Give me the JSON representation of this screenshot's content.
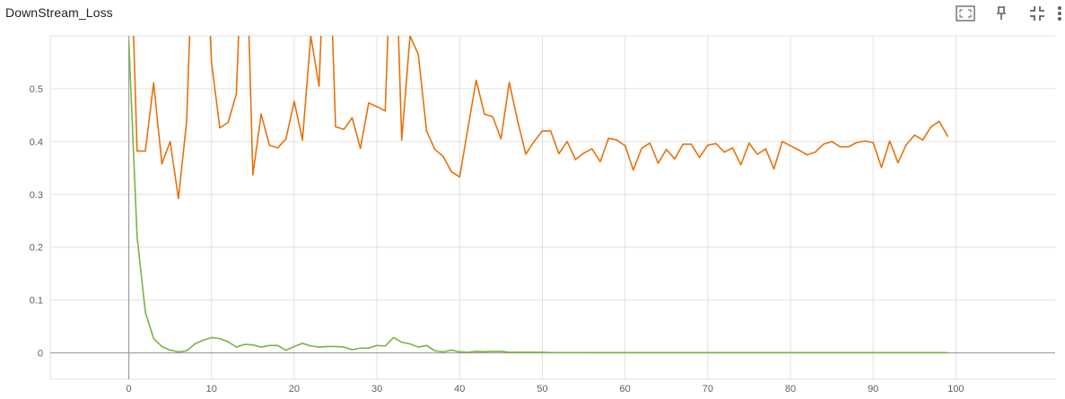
{
  "title": "DownStream_Loss",
  "toolbar": {
    "icons": [
      "fit-domain-icon",
      "pin-icon",
      "collapse-icon",
      "more-vert-icon"
    ]
  },
  "colors": {
    "series_orange": "#e8710a",
    "series_green": "#7cb342",
    "grid": "#e0e0e0",
    "axis": "#9e9e9e",
    "tick_text": "#616161"
  },
  "chart_data": {
    "type": "line",
    "title": "DownStream_Loss",
    "xlabel": "",
    "ylabel": "",
    "xlim": [
      -9.5,
      112
    ],
    "ylim": [
      -0.05,
      0.6
    ],
    "x_ticks": [
      0,
      10,
      20,
      30,
      40,
      50,
      60,
      70,
      80,
      90,
      100
    ],
    "y_ticks": [
      0,
      0.1,
      0.2,
      0.3,
      0.4,
      0.5
    ],
    "x_tick_labels": [
      "0",
      "10",
      "20",
      "30",
      "40",
      "50",
      "60",
      "70",
      "80",
      "90",
      "100"
    ],
    "y_tick_labels": [
      "0",
      "0.1",
      "0.2",
      "0.3",
      "0.4",
      "0.5"
    ],
    "grid": true,
    "legend": "none",
    "series": [
      {
        "color": "#e8710a",
        "x": [
          0,
          1,
          2,
          3,
          4,
          5,
          6,
          7,
          8,
          9,
          10,
          11,
          12,
          13,
          14,
          15,
          16,
          17,
          18,
          19,
          20,
          21,
          22,
          23,
          24,
          25,
          26,
          27,
          28,
          29,
          30,
          31,
          32,
          33,
          34,
          35,
          36,
          37,
          38,
          39,
          40,
          41,
          42,
          43,
          44,
          45,
          46,
          47,
          48,
          49,
          50,
          51,
          52,
          53,
          54,
          55,
          56,
          57,
          58,
          59,
          60,
          61,
          62,
          63,
          64,
          65,
          66,
          67,
          68,
          69,
          70,
          71,
          72,
          73,
          74,
          75,
          76,
          77,
          78,
          79,
          80,
          81,
          82,
          83,
          84,
          85,
          86,
          87,
          88,
          89,
          90,
          91,
          92,
          93,
          94,
          95,
          96,
          97,
          98,
          99
        ],
        "values": [
          0.9,
          0.382,
          0.382,
          0.511,
          0.358,
          0.4,
          0.292,
          0.44,
          0.9,
          0.9,
          0.55,
          0.426,
          0.436,
          0.49,
          0.9,
          0.337,
          0.452,
          0.393,
          0.388,
          0.405,
          0.476,
          0.403,
          0.6,
          0.505,
          0.9,
          0.428,
          0.423,
          0.445,
          0.387,
          0.473,
          0.466,
          0.458,
          0.9,
          0.403,
          0.6,
          0.565,
          0.42,
          0.385,
          0.372,
          0.343,
          0.333,
          0.425,
          0.516,
          0.452,
          0.447,
          0.405,
          0.512,
          0.44,
          0.376,
          0.4,
          0.42,
          0.42,
          0.377,
          0.4,
          0.366,
          0.378,
          0.386,
          0.362,
          0.406,
          0.403,
          0.392,
          0.346,
          0.387,
          0.397,
          0.359,
          0.385,
          0.367,
          0.395,
          0.395,
          0.37,
          0.393,
          0.396,
          0.38,
          0.388,
          0.356,
          0.397,
          0.376,
          0.386,
          0.348,
          0.4,
          0.392,
          0.384,
          0.375,
          0.38,
          0.395,
          0.4,
          0.39,
          0.39,
          0.398,
          0.401,
          0.398,
          0.351,
          0.401,
          0.36,
          0.394,
          0.412,
          0.403,
          0.428,
          0.438,
          0.41
        ]
      },
      {
        "color": "#7cb342",
        "x": [
          0,
          1,
          2,
          3,
          4,
          5,
          6,
          7,
          8,
          9,
          10,
          11,
          12,
          13,
          14,
          15,
          16,
          17,
          18,
          19,
          20,
          21,
          22,
          23,
          24,
          25,
          26,
          27,
          28,
          29,
          30,
          31,
          32,
          33,
          34,
          35,
          36,
          37,
          38,
          39,
          40,
          41,
          42,
          43,
          44,
          45,
          46,
          47,
          48,
          49,
          50,
          51,
          52,
          53,
          54,
          55,
          56,
          57,
          58,
          59,
          60,
          61,
          62,
          63,
          64,
          65,
          66,
          67,
          68,
          69,
          70,
          71,
          72,
          73,
          74,
          75,
          76,
          77,
          78,
          79,
          80,
          81,
          82,
          83,
          84,
          85,
          86,
          87,
          88,
          89,
          90,
          91,
          92,
          93,
          94,
          95,
          96,
          97,
          98,
          99
        ],
        "values": [
          0.59,
          0.22,
          0.077,
          0.027,
          0.012,
          0.005,
          0.002,
          0.004,
          0.017,
          0.024,
          0.029,
          0.027,
          0.021,
          0.011,
          0.016,
          0.015,
          0.011,
          0.014,
          0.014,
          0.005,
          0.012,
          0.018,
          0.013,
          0.011,
          0.012,
          0.012,
          0.011,
          0.006,
          0.009,
          0.009,
          0.014,
          0.013,
          0.029,
          0.02,
          0.017,
          0.011,
          0.014,
          0.004,
          0.002,
          0.005,
          0.002,
          0.001,
          0.003,
          0.002,
          0.003,
          0.003,
          0.001,
          0.001,
          0.001,
          0.001,
          0.001,
          0.0005,
          0.0005,
          0.0005,
          0.0005,
          0.0005,
          0.0004,
          0.0004,
          0.0004,
          0.0004,
          0.0004,
          0.0004,
          0.0004,
          0.0004,
          0.0004,
          0.0004,
          0.0004,
          0.0004,
          0.0004,
          0.0004,
          0.0004,
          0.0004,
          0.0004,
          0.0004,
          0.0004,
          0.0004,
          0.0004,
          0.0004,
          0.0004,
          0.0004,
          0.0004,
          0.0004,
          0.0004,
          0.0004,
          0.0004,
          0.0004,
          0.0004,
          0.0004,
          0.0004,
          0.0004,
          0.0004,
          0.0004,
          0.0004,
          0.0004,
          0.0004,
          0.0004,
          0.0004,
          0.0004,
          0.0004,
          0.0004
        ]
      }
    ]
  }
}
